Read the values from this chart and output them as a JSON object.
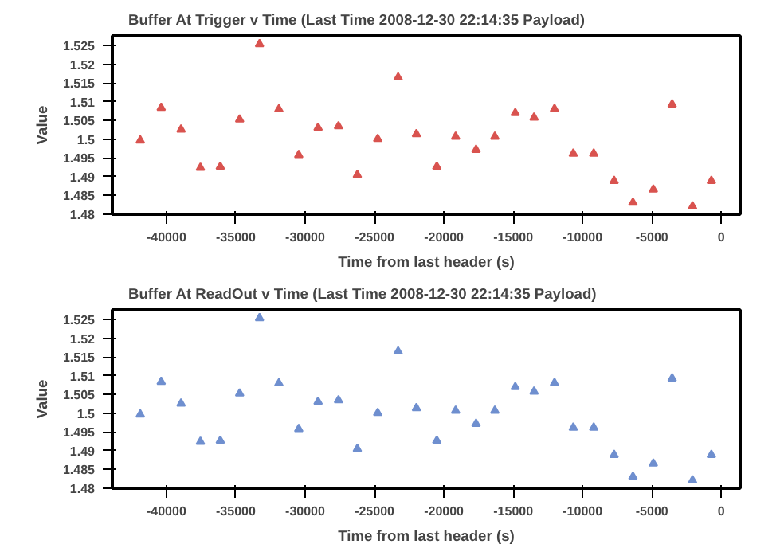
{
  "chart_data": [
    {
      "type": "scatter",
      "title": "Buffer At Trigger v Time (Last Time 2008-12-30 22:14:35 Payload)",
      "xlabel": "Time from last header (s)",
      "ylabel": "Value",
      "marker": "triangle",
      "grid": false,
      "xlim": [
        -43900,
        1360
      ],
      "ylim": [
        1.48,
        1.5276
      ],
      "xticks": [
        -40000,
        -35000,
        -30000,
        -25000,
        -20000,
        -15000,
        -10000,
        -5000,
        0
      ],
      "yticks": [
        1.48,
        1.485,
        1.49,
        1.495,
        1.5,
        1.505,
        1.51,
        1.515,
        1.52,
        1.525
      ],
      "x": [
        -41885,
        -40377,
        -38944,
        -37549,
        -36117,
        -34722,
        -33289,
        -31895,
        -30462,
        -29067,
        -27596,
        -26239,
        -24769,
        -23298,
        -21979,
        -20509,
        -19152,
        -17681,
        -16324,
        -14854,
        -13497,
        -12026,
        -10669,
        -9199,
        -7729,
        -6371,
        -4901,
        -3544,
        -2074,
        -716
      ],
      "series": [
        {
          "color": "#d9534f",
          "values": [
            1.4997,
            1.5084,
            1.5026,
            1.4924,
            1.4927,
            1.5053,
            1.5254,
            1.508,
            1.4958,
            1.5031,
            1.5035,
            1.4905,
            1.5001,
            1.5165,
            1.5014,
            1.4927,
            1.5007,
            1.4972,
            1.5007,
            1.507,
            1.5058,
            1.5081,
            1.4962,
            1.4962,
            1.4889,
            1.4831,
            1.4866,
            1.5093,
            1.4821,
            1.4889
          ]
        }
      ]
    },
    {
      "type": "scatter",
      "title": "Buffer At ReadOut v Time (Last Time 2008-12-30 22:14:35 Payload)",
      "xlabel": "Time from last header (s)",
      "ylabel": "Value",
      "marker": "triangle",
      "grid": false,
      "xlim": [
        -43900,
        1360
      ],
      "ylim": [
        1.48,
        1.5276
      ],
      "xticks": [
        -40000,
        -35000,
        -30000,
        -25000,
        -20000,
        -15000,
        -10000,
        -5000,
        0
      ],
      "yticks": [
        1.48,
        1.485,
        1.49,
        1.495,
        1.5,
        1.505,
        1.51,
        1.515,
        1.52,
        1.525
      ],
      "x": [
        -41885,
        -40377,
        -38944,
        -37549,
        -36117,
        -34722,
        -33289,
        -31895,
        -30462,
        -29067,
        -27596,
        -26239,
        -24769,
        -23298,
        -21979,
        -20509,
        -19152,
        -17681,
        -16324,
        -14854,
        -13497,
        -12026,
        -10669,
        -9199,
        -7729,
        -6371,
        -4901,
        -3544,
        -2074,
        -716
      ],
      "series": [
        {
          "color": "#6f8fcf",
          "values": [
            1.4997,
            1.5084,
            1.5026,
            1.4924,
            1.4927,
            1.5053,
            1.5254,
            1.508,
            1.4958,
            1.5031,
            1.5035,
            1.4905,
            1.5001,
            1.5165,
            1.5014,
            1.4927,
            1.5007,
            1.4972,
            1.5007,
            1.507,
            1.5058,
            1.5081,
            1.4962,
            1.4962,
            1.4889,
            1.4831,
            1.4866,
            1.5093,
            1.4821,
            1.4889
          ]
        }
      ]
    }
  ]
}
